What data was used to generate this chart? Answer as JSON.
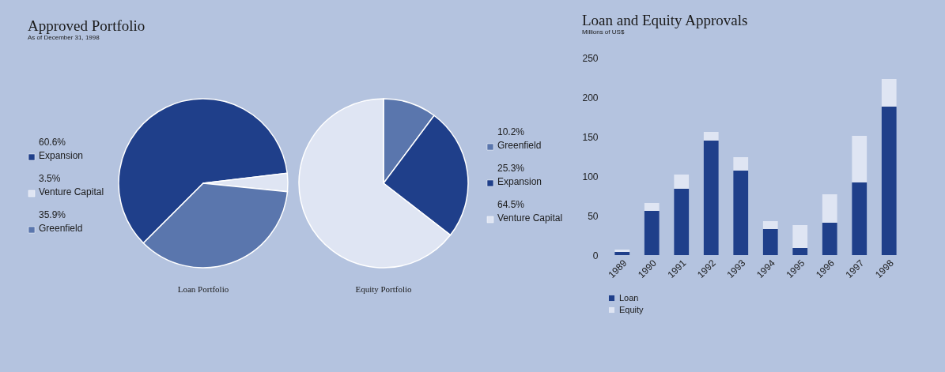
{
  "chart_data": [
    {
      "type": "pie",
      "title": "Approved Portfolio",
      "subtitle": "As of December 31, 1998",
      "xlabel": "Loan Portfolio",
      "categories": [
        "Expansion",
        "Venture Capital",
        "Greenfield"
      ],
      "values": [
        60.6,
        3.5,
        35.9
      ],
      "value_labels": [
        "60.6%",
        "3.5%",
        "35.9%"
      ],
      "colors": [
        "#1f3f8a",
        "#dfe5f3",
        "#5a76ad"
      ],
      "legend": "left"
    },
    {
      "type": "pie",
      "xlabel": "Equity Portfolio",
      "categories": [
        "Greenfield",
        "Expansion",
        "Venture Capital"
      ],
      "values": [
        10.2,
        25.3,
        64.5
      ],
      "value_labels": [
        "10.2%",
        "25.3%",
        "64.5%"
      ],
      "colors": [
        "#5a76ad",
        "#1f3f8a",
        "#dfe5f3"
      ],
      "legend": "right"
    },
    {
      "type": "bar",
      "title": "Loan and Equity Approvals",
      "subtitle": "Millions of US$",
      "stacked": true,
      "categories": [
        "1989",
        "1990",
        "1991",
        "1992",
        "1993",
        "1994",
        "1995",
        "1996",
        "1997",
        "1998"
      ],
      "series": [
        {
          "name": "Loan",
          "color": "#1f3f8a",
          "values": [
            4,
            56,
            84,
            145,
            107,
            33,
            9,
            41,
            92,
            188
          ]
        },
        {
          "name": "Equity",
          "color": "#dfe5f3",
          "values": [
            3,
            10,
            18,
            11,
            17,
            10,
            29,
            36,
            59,
            35
          ]
        }
      ],
      "ylim": [
        0,
        250
      ],
      "yticks": [
        0,
        50,
        100,
        150,
        200,
        250
      ],
      "grid": false,
      "legend": "bottom"
    }
  ]
}
